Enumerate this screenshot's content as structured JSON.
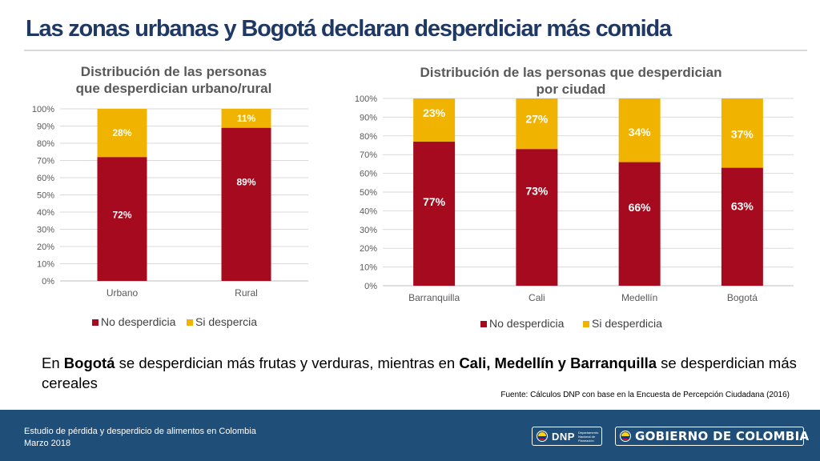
{
  "page": {
    "title": "Las zonas urbanas y Bogotá declaran desperdiciar más comida",
    "body_parts": [
      {
        "text": "En ",
        "bold": false
      },
      {
        "text": "Bogotá",
        "bold": true
      },
      {
        "text": " se desperdician más frutas y verduras, mientras en ",
        "bold": false
      },
      {
        "text": "Cali, Medellín y Barranquilla",
        "bold": true
      },
      {
        "text": " se desperdician más cereales",
        "bold": false
      }
    ],
    "source": "Fuente: Cálculos DNP con base en la Encuesta de Percepción Ciudadana (2016)"
  },
  "footer": {
    "line1": "Estudio de pérdida y desperdicio de alimentos en Colombia",
    "line2": "Marzo 2018",
    "dnp_logo": "DNP",
    "dnp_sub": "Departamento Nacional de Planeación",
    "gov_logo": "GOBIERNO DE COLOMBIA"
  },
  "colors": {
    "no_desperdicia": "#a50a1e",
    "si_desperdicia": "#f0b400",
    "title": "#1f3864",
    "footer_bg": "#1f4e79"
  },
  "chart_data": [
    {
      "type": "bar",
      "stacked": true,
      "title_lines": [
        "Distribución de las personas",
        "que desperdician urbano/rural"
      ],
      "categories": [
        "Urbano",
        "Rural"
      ],
      "series": [
        {
          "name": "No desperdicia",
          "values": [
            72,
            89
          ],
          "labels": [
            "72%",
            "89%"
          ],
          "color": "#a50a1e"
        },
        {
          "name": "Si despercia",
          "values": [
            28,
            11
          ],
          "labels": [
            "28%",
            "11%"
          ],
          "color": "#f0b400"
        }
      ],
      "ylim": [
        0,
        100
      ],
      "yticks": [
        "0%",
        "10%",
        "20%",
        "30%",
        "40%",
        "50%",
        "60%",
        "70%",
        "80%",
        "90%",
        "100%"
      ],
      "grid": true,
      "legend_position": "bottom"
    },
    {
      "type": "bar",
      "stacked": true,
      "title_lines": [
        "Distribución de las personas que desperdician",
        "por ciudad"
      ],
      "categories": [
        "Barranquilla",
        "Cali",
        "Medellín",
        "Bogotá"
      ],
      "series": [
        {
          "name": "No desperdicia",
          "values": [
            77,
            73,
            66,
            63
          ],
          "labels": [
            "77%",
            "73%",
            "66%",
            "63%"
          ],
          "color": "#a50a1e"
        },
        {
          "name": "Si desperdicia",
          "values": [
            23,
            27,
            34,
            37
          ],
          "labels": [
            "23%",
            "27%",
            "34%",
            "37%"
          ],
          "color": "#f0b400"
        }
      ],
      "ylim": [
        0,
        100
      ],
      "yticks": [
        "0%",
        "10%",
        "20%",
        "30%",
        "40%",
        "50%",
        "60%",
        "70%",
        "80%",
        "90%",
        "100%"
      ],
      "grid": true,
      "legend_position": "bottom"
    }
  ]
}
